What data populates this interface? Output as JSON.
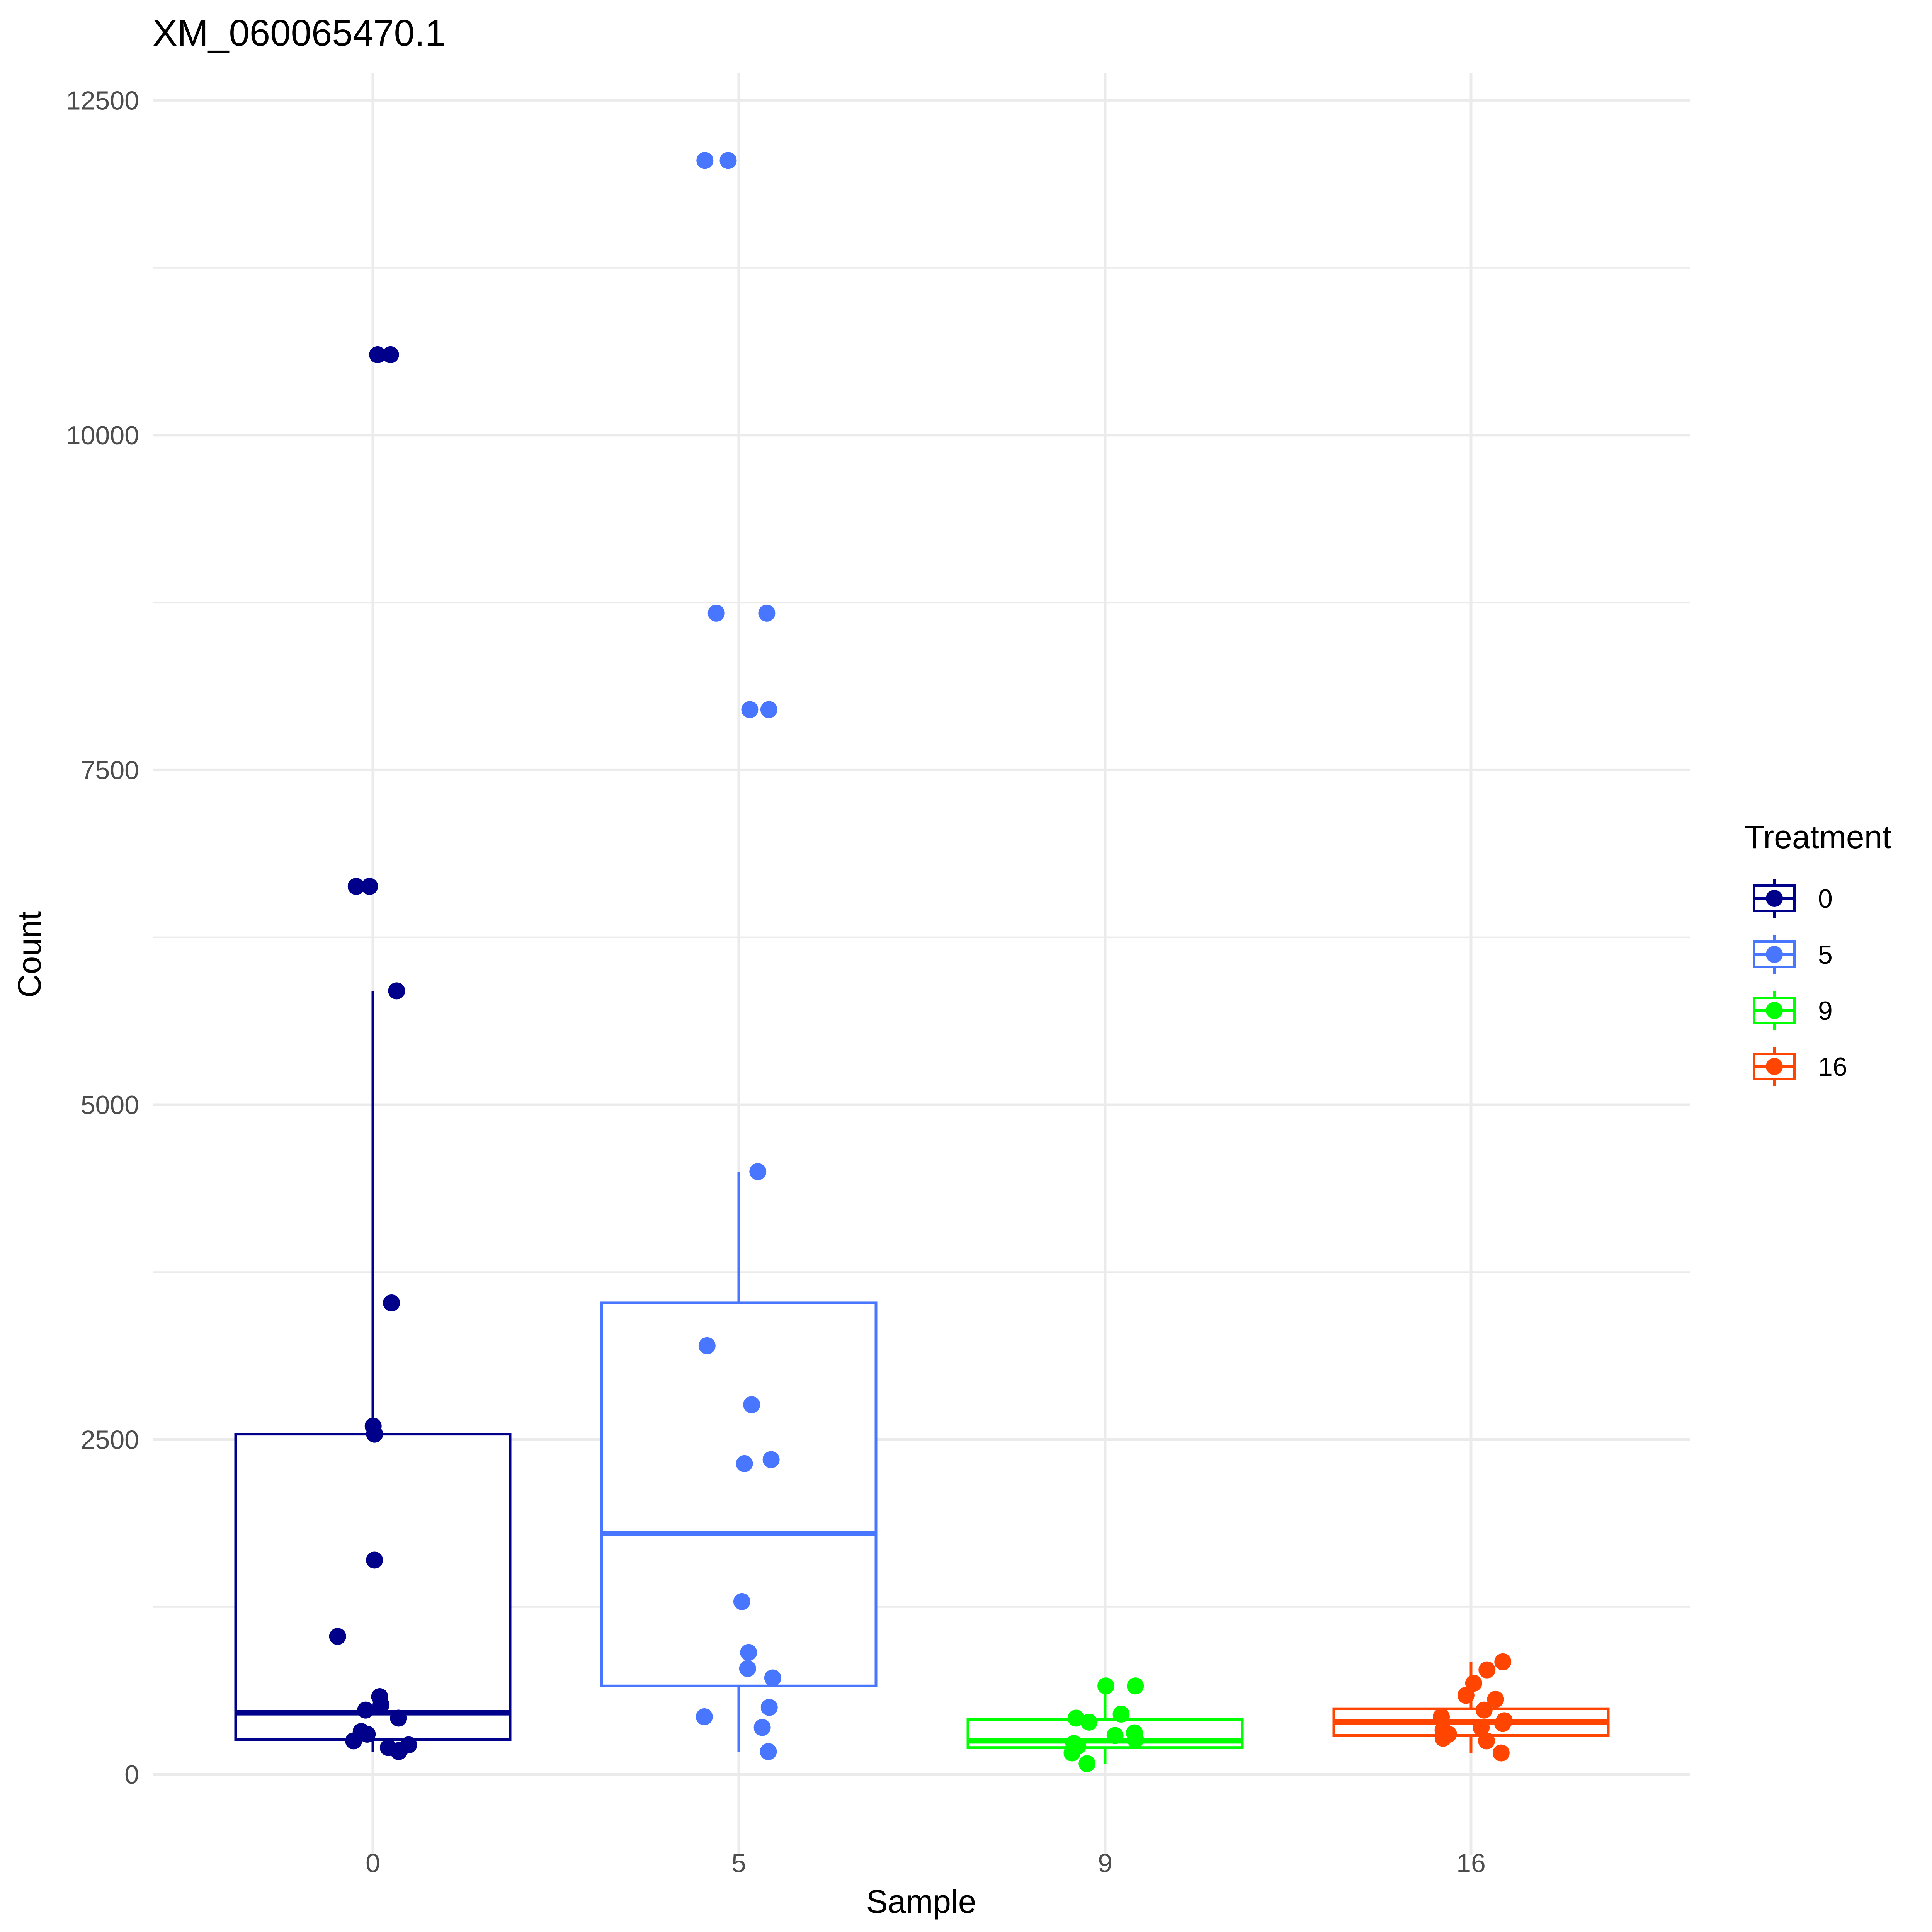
{
  "chart_data": {
    "type": "box",
    "title": "XM_060065470.1",
    "xlabel": "Sample",
    "ylabel": "Count",
    "categories": [
      "0",
      "5",
      "9",
      "16"
    ],
    "y_ticks": [
      0,
      2500,
      5000,
      7500,
      10000,
      12500
    ],
    "ylim": [
      -600,
      12700
    ],
    "grid": true,
    "legend": {
      "title": "Treatment",
      "placement": "right",
      "entries": [
        "0",
        "5",
        "9",
        "16"
      ]
    },
    "colors": {
      "0": "#00008B",
      "5": "#4876FF",
      "9": "#00FF00",
      "16": "#FF4500"
    },
    "series": [
      {
        "name": "0",
        "box": {
          "q1": 260,
          "median": 460,
          "q3": 2540,
          "whisker_low": 170,
          "whisker_high": 5850
        },
        "points": [
          10600,
          10600,
          6630,
          6630,
          5850,
          3520,
          2600,
          2540,
          1600,
          1030,
          580,
          520,
          480,
          420,
          320,
          300,
          250,
          220,
          200,
          180,
          170
        ]
      },
      {
        "name": "5",
        "box": {
          "q1": 660,
          "median": 1800,
          "q3": 3520,
          "whisker_low": 170,
          "whisker_high": 4500
        },
        "points": [
          12050,
          12050,
          8670,
          8670,
          7950,
          7950,
          4500,
          3200,
          2760,
          2350,
          2320,
          1290,
          910,
          790,
          720,
          500,
          430,
          350,
          170
        ]
      },
      {
        "name": "9",
        "box": {
          "q1": 200,
          "median": 250,
          "q3": 410,
          "whisker_low": 80,
          "whisker_high": 660
        },
        "points": [
          660,
          660,
          450,
          420,
          390,
          310,
          290,
          260,
          230,
          210,
          190,
          160,
          80
        ]
      },
      {
        "name": "16",
        "box": {
          "q1": 290,
          "median": 390,
          "q3": 490,
          "whisker_low": 160,
          "whisker_high": 840
        },
        "points": [
          840,
          780,
          680,
          590,
          560,
          480,
          430,
          400,
          380,
          350,
          330,
          300,
          270,
          250,
          160
        ]
      }
    ]
  }
}
